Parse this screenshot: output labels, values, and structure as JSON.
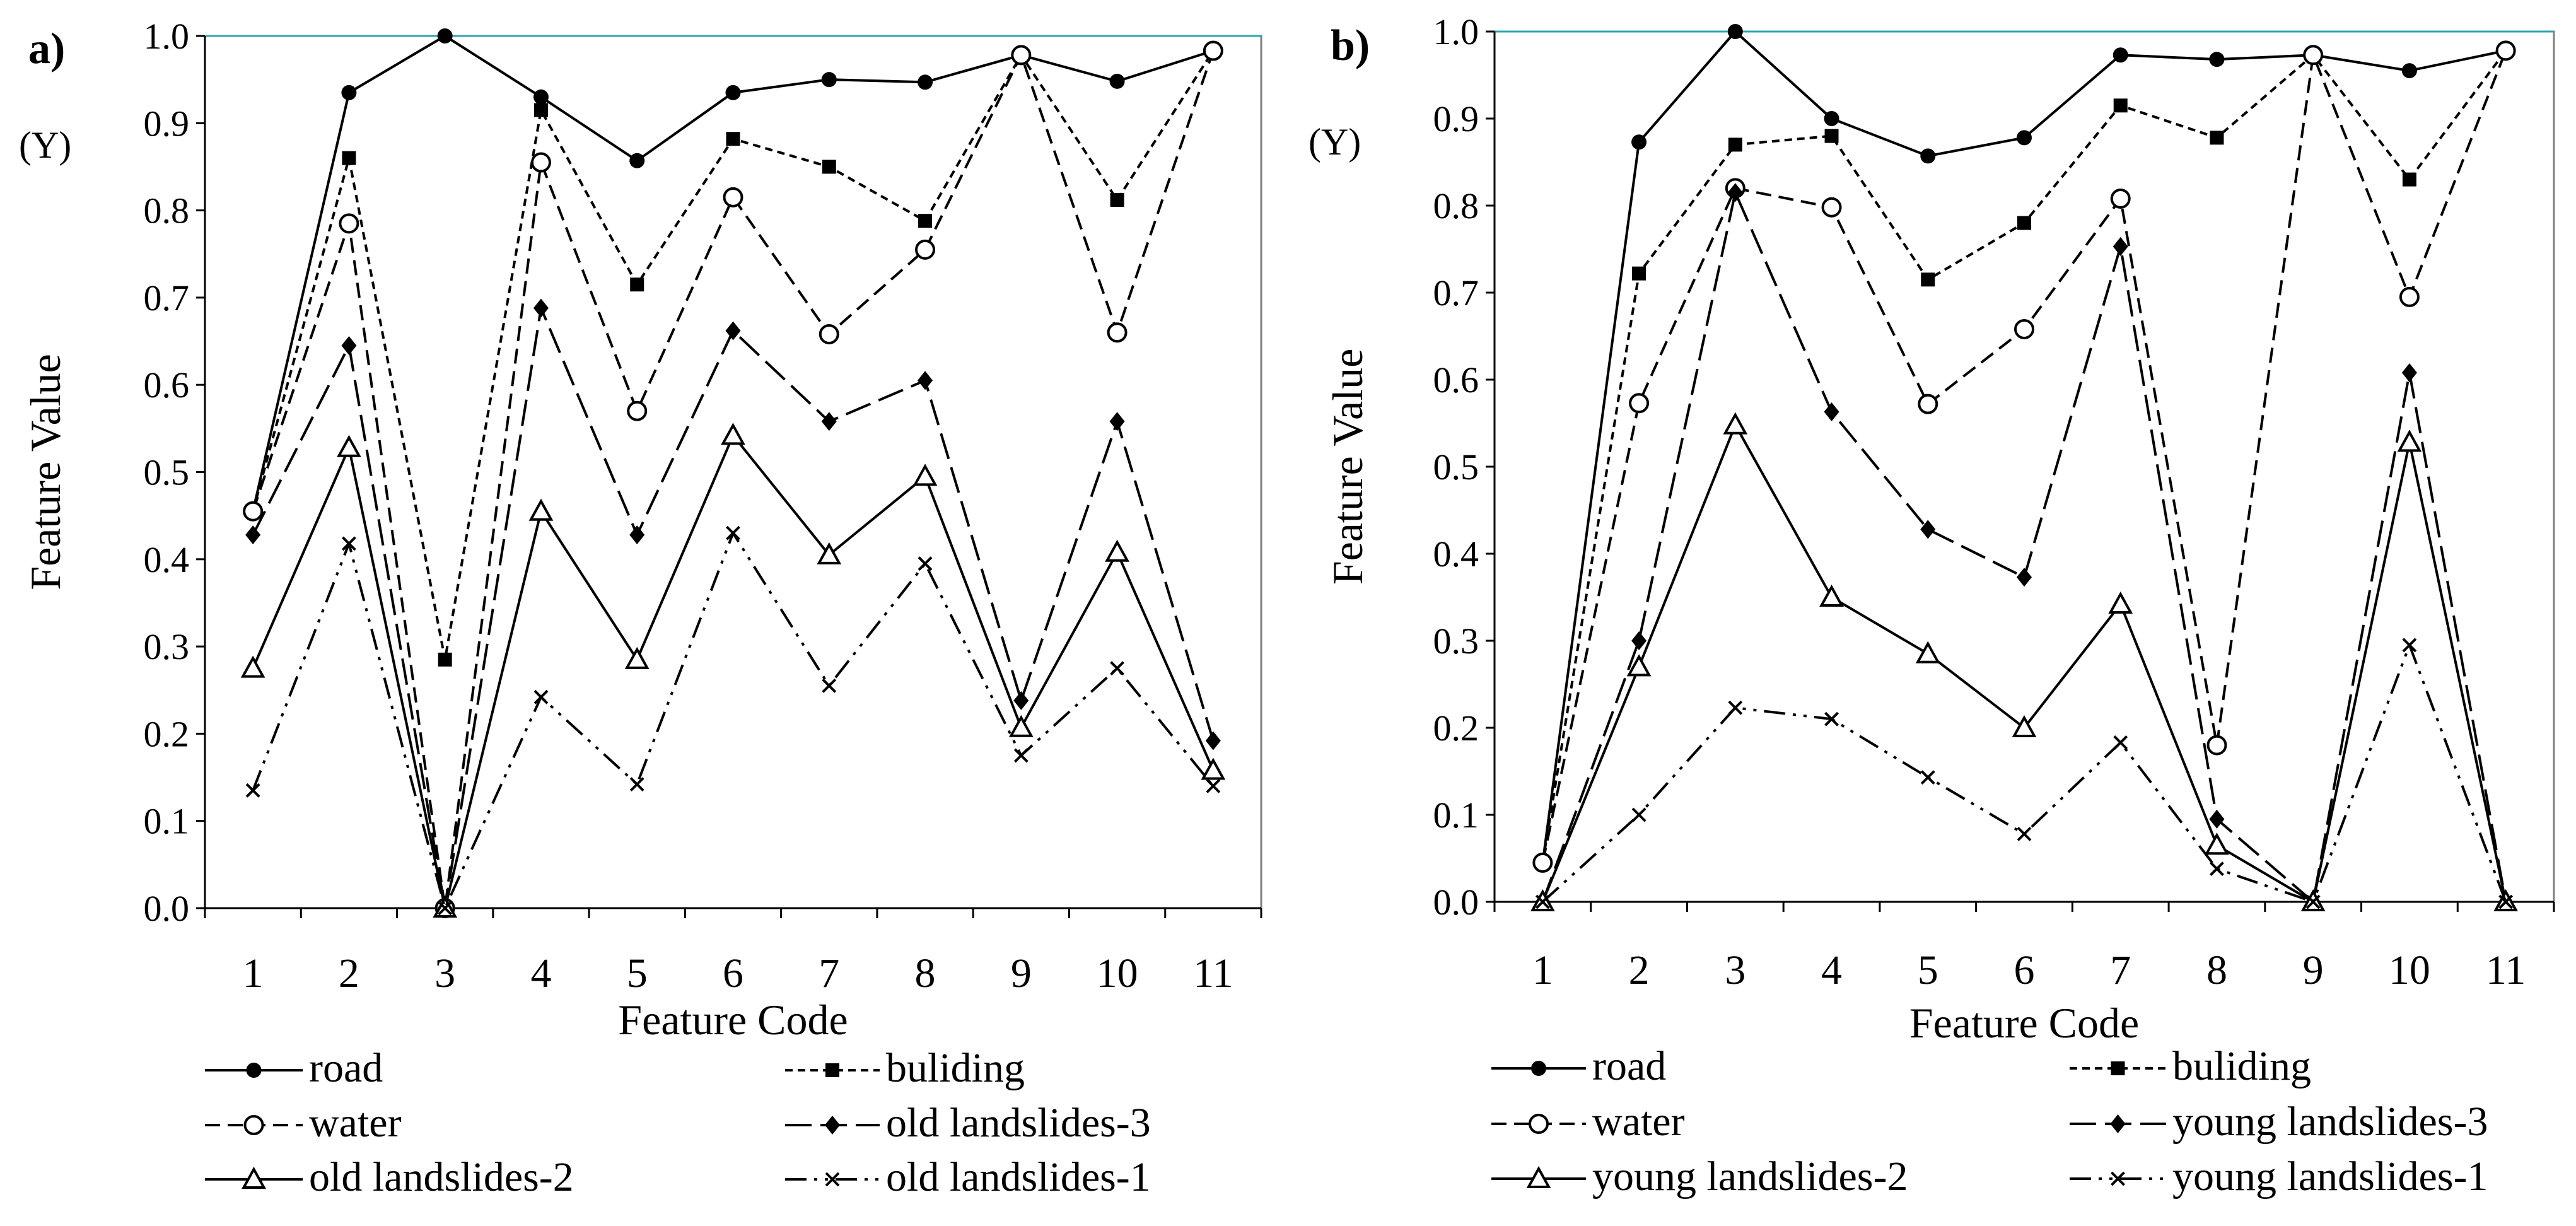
{
  "chart_data": [
    {
      "type": "line",
      "panel_label": "a)",
      "title": "",
      "xlabel": "Feature Code",
      "ylabel": "Feature Value",
      "y_marker": "(Y)",
      "ylim": [
        0,
        1
      ],
      "yticks": [
        "0.0",
        "0.1",
        "0.2",
        "0.3",
        "0.4",
        "0.5",
        "0.6",
        "0.7",
        "0.8",
        "0.9",
        "1.0"
      ],
      "categories": [
        "1",
        "2",
        "3",
        "4",
        "5",
        "6",
        "7",
        "8",
        "9",
        "10",
        "11"
      ],
      "grid": false,
      "legend_placement": "bottom",
      "series": [
        {
          "name": "road",
          "dash": "solid",
          "marker": "dot",
          "values": [
            0.455,
            0.935,
            1.0,
            0.93,
            0.857,
            0.935,
            0.95,
            0.947,
            0.978,
            0.948,
            0.983
          ]
        },
        {
          "name": "buliding",
          "dash": "short",
          "marker": "square",
          "values": [
            0.455,
            0.86,
            0.285,
            0.915,
            0.715,
            0.882,
            0.85,
            0.788,
            0.978,
            0.812,
            0.983
          ]
        },
        {
          "name": "water",
          "dash": "medium",
          "marker": "circle-open",
          "values": [
            0.455,
            0.785,
            0.0,
            0.855,
            0.57,
            0.815,
            0.658,
            0.755,
            0.978,
            0.66,
            0.983
          ]
        },
        {
          "name": "old landslides-3",
          "dash": "long",
          "marker": "diamond",
          "values": [
            0.428,
            0.645,
            0.0,
            0.688,
            0.428,
            0.662,
            0.558,
            0.605,
            0.238,
            0.558,
            0.192
          ]
        },
        {
          "name": "old landslides-2",
          "dash": "solid",
          "marker": "triangle-open",
          "values": [
            0.275,
            0.528,
            0.0,
            0.455,
            0.285,
            0.542,
            0.405,
            0.495,
            0.207,
            0.408,
            0.158
          ]
        },
        {
          "name": "old landslides-1",
          "dash": "dashdotdot",
          "marker": "x",
          "values": [
            0.135,
            0.418,
            0.0,
            0.242,
            0.142,
            0.43,
            0.255,
            0.395,
            0.175,
            0.275,
            0.14
          ]
        }
      ]
    },
    {
      "type": "line",
      "panel_label": "b)",
      "title": "",
      "xlabel": "Feature Code",
      "ylabel": "Feature Value",
      "y_marker": "(Y)",
      "ylim": [
        0,
        1
      ],
      "yticks": [
        "0.0",
        "0.1",
        "0.2",
        "0.3",
        "0.4",
        "0.5",
        "0.6",
        "0.7",
        "0.8",
        "0.9",
        "1.0"
      ],
      "categories": [
        "1",
        "2",
        "3",
        "4",
        "5",
        "6",
        "7",
        "8",
        "9",
        "10",
        "11"
      ],
      "grid": false,
      "legend_placement": "bottom",
      "series": [
        {
          "name": "road",
          "dash": "solid",
          "marker": "dot",
          "values": [
            0.045,
            0.873,
            1.0,
            0.9,
            0.857,
            0.878,
            0.973,
            0.968,
            0.973,
            0.955,
            0.978
          ]
        },
        {
          "name": "buliding",
          "dash": "short",
          "marker": "square",
          "values": [
            0.045,
            0.722,
            0.87,
            0.88,
            0.715,
            0.78,
            0.915,
            0.878,
            0.973,
            0.83,
            0.978
          ]
        },
        {
          "name": "water",
          "dash": "medium",
          "marker": "circle-open",
          "values": [
            0.045,
            0.573,
            0.82,
            0.798,
            0.572,
            0.658,
            0.808,
            0.18,
            0.973,
            0.695,
            0.978
          ]
        },
        {
          "name": "young landslides-3",
          "dash": "long",
          "marker": "diamond",
          "values": [
            0.0,
            0.3,
            0.815,
            0.563,
            0.428,
            0.373,
            0.753,
            0.095,
            0.0,
            0.608,
            0.0
          ]
        },
        {
          "name": "young landslides-2",
          "dash": "solid",
          "marker": "triangle-open",
          "values": [
            0.0,
            0.27,
            0.548,
            0.35,
            0.285,
            0.2,
            0.342,
            0.065,
            0.0,
            0.528,
            0.0
          ]
        },
        {
          "name": "young landslides-1",
          "dash": "dashdotdot",
          "marker": "x",
          "values": [
            0.0,
            0.1,
            0.223,
            0.21,
            0.143,
            0.078,
            0.183,
            0.038,
            0.0,
            0.295,
            0.0
          ]
        }
      ]
    }
  ]
}
